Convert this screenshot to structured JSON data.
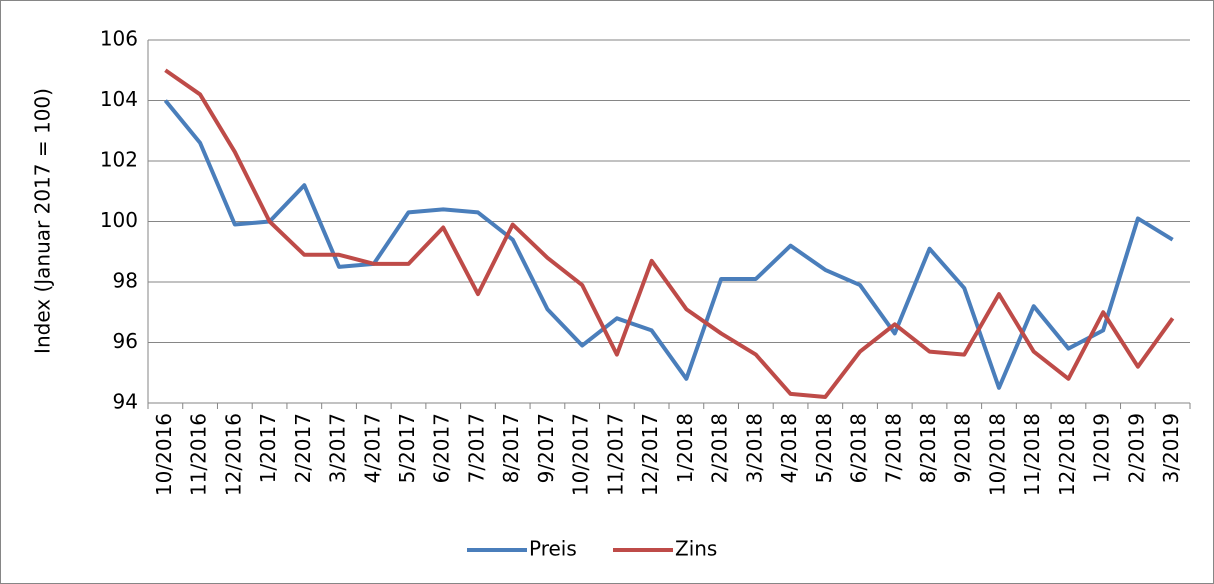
{
  "chart_data": {
    "type": "line",
    "y_label": "Index (Januar 2017 = 100)",
    "categories": [
      "10/2016",
      "11/2016",
      "12/2016",
      "1/2017",
      "2/2017",
      "3/2017",
      "4/2017",
      "5/2017",
      "6/2017",
      "7/2017",
      "8/2017",
      "9/2017",
      "10/2017",
      "11/2017",
      "12/2017",
      "1/2018",
      "2/2018",
      "3/2018",
      "4/2018",
      "5/2018",
      "6/2018",
      "7/2018",
      "8/2018",
      "9/2018",
      "10/2018",
      "11/2018",
      "12/2018",
      "1/2019",
      "2/2019",
      "3/2019"
    ],
    "series": [
      {
        "name": "Preis",
        "color": "#4a7ebb",
        "values": [
          104.0,
          102.6,
          99.9,
          100.0,
          101.2,
          98.5,
          98.6,
          100.3,
          100.4,
          100.3,
          99.4,
          97.1,
          95.9,
          96.8,
          96.4,
          94.8,
          98.1,
          98.1,
          99.2,
          98.4,
          97.9,
          96.3,
          99.1,
          97.8,
          94.5,
          97.2,
          95.8,
          96.4,
          100.1,
          99.4
        ]
      },
      {
        "name": "Zins",
        "color": "#be4b48",
        "values": [
          105.0,
          104.2,
          102.3,
          100.0,
          98.9,
          98.9,
          98.6,
          98.6,
          99.8,
          97.6,
          99.9,
          98.8,
          97.9,
          95.6,
          98.7,
          97.1,
          96.3,
          95.6,
          94.3,
          94.2,
          95.7,
          96.6,
          95.7,
          95.6,
          97.6,
          95.7,
          94.8,
          97.0,
          95.2,
          96.8
        ]
      }
    ],
    "ylim": [
      94,
      106
    ],
    "yticks": [
      94,
      96,
      98,
      100,
      102,
      104,
      106
    ],
    "grid": true,
    "legend": "bottom"
  }
}
